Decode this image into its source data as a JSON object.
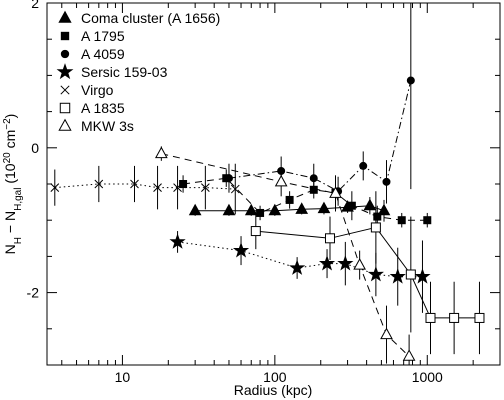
{
  "chart_data": {
    "type": "scatter",
    "xscale": "log",
    "xlim": [
      3.2,
      3000
    ],
    "ylim": [
      -3,
      2
    ],
    "xticks": [
      10,
      100,
      1000
    ],
    "xtick_labels": [
      "10",
      "100",
      "1000"
    ],
    "yticks": [
      -2,
      0,
      2
    ],
    "ytick_labels": [
      "-2",
      "0",
      "2"
    ],
    "xlabel": "Radius (kpc)",
    "ylabel": "N_H − N_H,gal (10^20 cm^-2)",
    "grid": false,
    "legend_position": "top-left",
    "series": [
      {
        "name": "Coma cluster (A 1656)",
        "marker": "triangle-filled",
        "line": "solid",
        "points": [
          [
            30,
            -0.87,
            0.07
          ],
          [
            50,
            -0.87,
            0.07
          ],
          [
            70,
            -0.87,
            0.07
          ],
          [
            100,
            -0.87,
            0.07
          ],
          [
            150,
            -0.85,
            0.07
          ],
          [
            210,
            -0.84,
            0.08
          ],
          [
            300,
            -0.82,
            0.08
          ],
          [
            420,
            -0.8,
            0.12
          ],
          [
            520,
            -0.87,
            0.15
          ]
        ]
      },
      {
        "name": "A 1795",
        "marker": "square-filled",
        "line": "dash",
        "points": [
          [
            25,
            -0.5,
            0.12
          ],
          [
            48,
            -0.42,
            0.12
          ],
          [
            80,
            -0.9,
            0.1
          ],
          [
            125,
            -0.72,
            0.12
          ],
          [
            180,
            -0.58,
            0.12
          ],
          [
            250,
            -0.62,
            0.15
          ],
          [
            320,
            -0.8,
            0.2
          ],
          [
            470,
            -0.95,
            0.15
          ],
          [
            680,
            -1.0,
            0.1
          ],
          [
            1000,
            -1.0,
            0.1
          ]
        ]
      },
      {
        "name": "A 4059",
        "marker": "circle-filled",
        "line": "dashdot",
        "points": [
          [
            50,
            -0.42,
            0.2
          ],
          [
            110,
            -0.32,
            0.2
          ],
          [
            180,
            -0.42,
            0.2
          ],
          [
            260,
            -0.6,
            0.2
          ],
          [
            380,
            -0.25,
            0.2
          ],
          [
            540,
            -0.47,
            0.3
          ],
          [
            780,
            0.93,
            1.5
          ]
        ]
      },
      {
        "name": "Sersic 159-03",
        "marker": "star",
        "line": "dot",
        "points": [
          [
            23,
            -1.3,
            0.15
          ],
          [
            60,
            -1.42,
            0.2
          ],
          [
            140,
            -1.66,
            0.15
          ],
          [
            220,
            -1.6,
            0.2
          ],
          [
            290,
            -1.6,
            0.3
          ],
          [
            460,
            -1.75,
            0.3
          ],
          [
            640,
            -1.78,
            0.4
          ],
          [
            930,
            -1.78,
            0.5
          ]
        ]
      },
      {
        "name": "Virgo",
        "marker": "x",
        "line": "dot",
        "points": [
          [
            3.6,
            -0.55,
            0.25
          ],
          [
            7,
            -0.5,
            0.25
          ],
          [
            12,
            -0.5,
            0.25
          ],
          [
            17,
            -0.55,
            0.3
          ],
          [
            23,
            -0.55,
            0.3
          ],
          [
            35,
            -0.55,
            0.3
          ],
          [
            55,
            -0.57,
            0.35
          ]
        ]
      },
      {
        "name": "A 1835",
        "marker": "square-open",
        "line": "solid",
        "points": [
          [
            75,
            -1.15,
            0.25
          ],
          [
            230,
            -1.25,
            0.3
          ],
          [
            460,
            -1.1,
            0.5
          ],
          [
            780,
            -1.75,
            0.8
          ],
          [
            1050,
            -2.35,
            0.5
          ],
          [
            1500,
            -2.35,
            0.5
          ],
          [
            2200,
            -2.35,
            0.5
          ]
        ]
      },
      {
        "name": "MKW 3s",
        "marker": "triangle-open",
        "line": "dash",
        "points": [
          [
            18,
            -0.08,
            0.1
          ],
          [
            110,
            -0.47,
            0.2
          ],
          [
            250,
            -0.63,
            0.25
          ],
          [
            360,
            -1.62,
            0.2
          ],
          [
            540,
            -2.58,
            0.4
          ],
          [
            760,
            -2.88,
            0.3
          ]
        ]
      }
    ]
  }
}
